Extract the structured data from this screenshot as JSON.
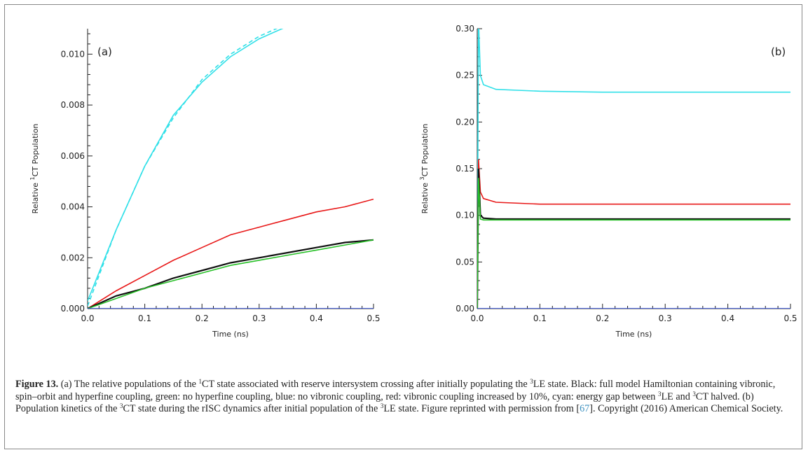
{
  "chart_data": [
    {
      "type": "line",
      "panel_label": "(a)",
      "xlabel": "Time (ns)",
      "ylabel": "Relative ¹CT Population",
      "ylabel_prefix": "Relative ",
      "ylabel_sup": "1",
      "ylabel_suffix": "CT Population",
      "xlim": [
        0,
        0.5
      ],
      "ylim": [
        0,
        0.011
      ],
      "xticks": [
        "0.0",
        "0.1",
        "0.2",
        "0.3",
        "0.4",
        "0.5"
      ],
      "yticks": [
        "0.000",
        "0.002",
        "0.004",
        "0.006",
        "0.008",
        "0.010"
      ],
      "x": [
        0,
        0.05,
        0.1,
        0.15,
        0.2,
        0.25,
        0.3,
        0.35,
        0.4,
        0.45,
        0.5
      ],
      "series": [
        {
          "color": "#30e0e8",
          "values": [
            0.0003,
            0.0031,
            0.0056,
            0.0076,
            0.0089,
            0.0099,
            0.0106,
            0.0111,
            null,
            null,
            null
          ]
        },
        {
          "color": "#30e0e8",
          "dashed": true,
          "values": [
            0.0001,
            0.0031,
            0.0056,
            0.0075,
            0.009,
            0.01,
            0.0107,
            0.0112,
            null,
            null,
            null
          ]
        },
        {
          "color": "#e81818",
          "values": [
            0,
            0.0007,
            0.0013,
            0.0019,
            0.0024,
            0.0029,
            0.0032,
            0.0035,
            0.0038,
            0.004,
            0.0043
          ]
        },
        {
          "color": "#111111",
          "values": [
            0,
            0.0005,
            0.0008,
            0.0012,
            0.0015,
            0.0018,
            0.002,
            0.0022,
            0.0024,
            0.0026,
            0.0027
          ]
        },
        {
          "color": "#28c028",
          "values": [
            0,
            0.0004,
            0.0008,
            0.0011,
            0.0014,
            0.0017,
            0.0019,
            0.0021,
            0.0023,
            0.0025,
            0.0027
          ]
        },
        {
          "color": "#2040e0",
          "values": [
            0,
            0,
            0,
            0,
            0,
            0,
            0,
            0,
            0,
            0,
            0
          ]
        }
      ]
    },
    {
      "type": "line",
      "panel_label": "(b)",
      "xlabel": "Time (ns)",
      "ylabel": "Relative ³CT Population",
      "ylabel_prefix": "Relative ",
      "ylabel_sup": "3",
      "ylabel_suffix": "CT Population",
      "xlim": [
        0,
        0.5
      ],
      "ylim": [
        0,
        0.3
      ],
      "xticks": [
        "0.0",
        "0.1",
        "0.2",
        "0.3",
        "0.4",
        "0.5"
      ],
      "yticks": [
        "0.00",
        "0.05",
        "0.10",
        "0.15",
        "0.20",
        "0.25",
        "0.30"
      ],
      "x": [
        0,
        0.002,
        0.005,
        0.01,
        0.03,
        0.1,
        0.2,
        0.3,
        0.4,
        0.5
      ],
      "series": [
        {
          "color": "#30e0e8",
          "values": [
            0,
            0.31,
            0.25,
            0.24,
            0.235,
            0.233,
            0.232,
            0.232,
            0.232,
            0.232
          ]
        },
        {
          "color": "#e81818",
          "values": [
            0,
            0.16,
            0.125,
            0.118,
            0.114,
            0.112,
            0.112,
            0.112,
            0.112,
            0.112
          ]
        },
        {
          "color": "#111111",
          "values": [
            0,
            0.15,
            0.1,
            0.097,
            0.096,
            0.096,
            0.096,
            0.096,
            0.096,
            0.096
          ]
        },
        {
          "color": "#28c028",
          "values": [
            0,
            0.14,
            0.096,
            0.095,
            0.095,
            0.095,
            0.095,
            0.095,
            0.095,
            0.095
          ]
        },
        {
          "color": "#2040e0",
          "values": [
            0,
            0,
            0,
            0,
            0,
            0,
            0,
            0,
            0,
            0
          ]
        }
      ]
    }
  ],
  "caption": {
    "label": "Figure 13.",
    "html": "(a) The relative populations of the <sup>1</sup>CT state associated with reserve intersystem crossing after initially populating the <sup>3</sup>LE state. Black: full model Hamiltonian containing vibronic, spin–orbit and hyperfine coupling, green: no hyperfine coupling, blue: no vibronic coupling, red: vibronic coupling increased by 10%, cyan: energy gap between <sup>3</sup>LE and <sup>3</sup>CT halved. (b) Population kinetics of the <sup>3</sup>CT state during the rISC dynamics after initial population of the <sup>3</sup>LE state. Figure reprinted with permission from [<span class=\"ref\">67</span>]. Copyright (2016) American Chemical Society."
  }
}
